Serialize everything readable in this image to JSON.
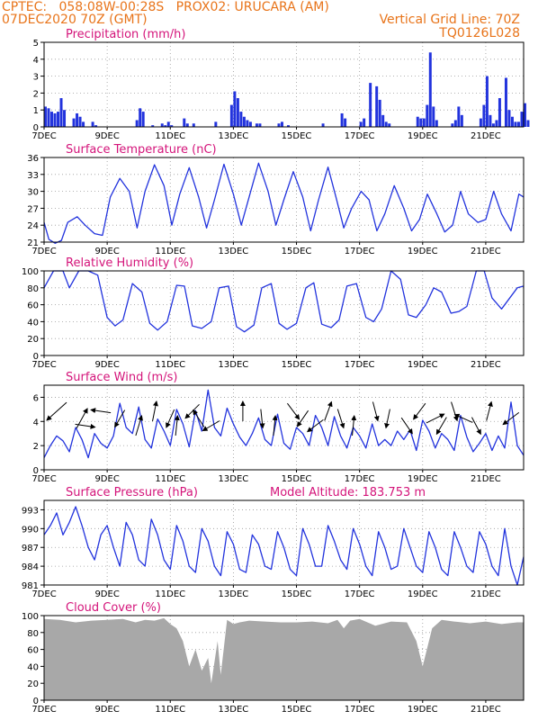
{
  "header": {
    "line1": "CPTEC:   058:08W-00:28S   PROX02: URUCARA (AM)",
    "line2_left": "07DEC2020 70Z (GMT)",
    "line2_right": "Vertical Grid Line: 70Z",
    "line3_right": "TQ0126L028"
  },
  "colors": {
    "header": "#e8741a",
    "title": "#d4147a",
    "series": "#2233dd",
    "cloud": "#a8a8a8",
    "arrow": "#000000"
  },
  "x_ticks": [
    "7DEC",
    "9DEC",
    "11DEC",
    "13DEC",
    "15DEC",
    "17DEC",
    "19DEC",
    "21DEC"
  ],
  "chart_data": [
    {
      "type": "bar",
      "title": "Precipitation (mm/h)",
      "ylim": [
        0,
        5
      ],
      "yticks": [
        0,
        1,
        2,
        3,
        4,
        5
      ],
      "x_days": [
        0,
        0.1,
        0.2,
        0.3,
        0.4,
        0.5,
        0.6,
        0.9,
        1.0,
        1.1,
        1.2,
        1.5,
        1.6,
        2.9,
        3.0,
        3.1,
        3.4,
        3.7,
        3.8,
        3.9,
        4.0,
        4.4,
        4.5,
        4.7,
        5.4,
        5.9,
        6.0,
        6.1,
        6.2,
        6.3,
        6.4,
        6.5,
        6.7,
        6.8,
        7.4,
        7.5,
        7.7,
        8.8,
        9.4,
        9.5,
        10.0,
        10.1,
        10.3,
        10.5,
        10.6,
        10.7,
        10.8,
        10.9,
        11.8,
        11.9,
        12.0,
        12.1,
        12.2,
        12.3,
        12.4,
        12.9,
        13.0,
        13.1,
        13.2,
        13.8,
        13.9,
        14.0,
        14.1,
        14.2,
        14.3,
        14.4,
        14.6,
        14.7,
        14.8,
        14.9,
        15.0,
        15.1,
        15.2,
        15.3
      ],
      "values": [
        1.2,
        1.1,
        0.9,
        0.8,
        0.9,
        1.7,
        1.0,
        0.5,
        0.8,
        0.6,
        0.3,
        0.3,
        0.1,
        0.4,
        1.1,
        0.9,
        0.1,
        0.2,
        0.1,
        0.3,
        0.1,
        0.5,
        0.2,
        0.2,
        0.3,
        1.3,
        2.1,
        1.7,
        0.9,
        0.6,
        0.4,
        0.3,
        0.2,
        0.2,
        0.2,
        0.3,
        0.1,
        0.2,
        0.8,
        0.5,
        0.3,
        0.5,
        2.6,
        2.4,
        1.6,
        0.7,
        0.3,
        0.2,
        0.6,
        0.5,
        0.5,
        1.3,
        4.4,
        1.2,
        0.4,
        0.2,
        0.4,
        1.2,
        0.7,
        0.5,
        1.3,
        3.0,
        0.7,
        0.2,
        0.4,
        1.7,
        2.9,
        1.0,
        0.6,
        0.3,
        0.3,
        0.9,
        1.4,
        0.4
      ]
    },
    {
      "type": "line",
      "title": "Surface Temperature (nC)",
      "ylim": [
        21,
        36
      ],
      "yticks": [
        21,
        24,
        27,
        30,
        33,
        36
      ],
      "x_days": [
        0,
        0.15,
        0.35,
        0.55,
        0.75,
        1.05,
        1.3,
        1.6,
        1.85,
        2.1,
        2.4,
        2.7,
        2.95,
        3.2,
        3.5,
        3.8,
        4.05,
        4.3,
        4.6,
        4.9,
        5.15,
        5.4,
        5.7,
        6.0,
        6.25,
        6.5,
        6.8,
        7.1,
        7.35,
        7.6,
        7.9,
        8.2,
        8.45,
        8.7,
        9.0,
        9.25,
        9.5,
        9.75,
        10.05,
        10.3,
        10.55,
        10.8,
        11.1,
        11.4,
        11.65,
        11.9,
        12.15,
        12.45,
        12.7,
        12.95,
        13.2,
        13.45,
        13.75,
        14.0,
        14.25,
        14.5,
        14.8,
        15.05,
        15.2
      ],
      "values": [
        24.5,
        21.5,
        20.8,
        21.3,
        24.5,
        25.5,
        24.0,
        22.5,
        22.2,
        29.0,
        32.3,
        30.0,
        23.5,
        30.0,
        34.7,
        31.0,
        24.0,
        29.5,
        34.2,
        29.0,
        23.5,
        28.5,
        34.8,
        29.5,
        24.0,
        29.0,
        35.0,
        30.0,
        24.0,
        28.5,
        33.5,
        29.0,
        23.0,
        28.5,
        34.3,
        29.0,
        23.5,
        27.0,
        30.0,
        28.5,
        23.0,
        26.0,
        31.0,
        27.0,
        23.0,
        25.0,
        29.5,
        26.0,
        22.8,
        24.0,
        30.0,
        26.0,
        24.5,
        25.0,
        30.0,
        26.0,
        23.0,
        29.5,
        29.0
      ]
    },
    {
      "type": "line",
      "title": "Relative Humidity (%)",
      "ylim": [
        0,
        100
      ],
      "yticks": [
        0,
        20,
        40,
        60,
        80,
        100
      ],
      "x_days": [
        0,
        0.3,
        0.6,
        0.8,
        1.1,
        1.4,
        1.7,
        2.0,
        2.25,
        2.5,
        2.8,
        3.1,
        3.35,
        3.6,
        3.9,
        4.2,
        4.45,
        4.7,
        5.0,
        5.3,
        5.55,
        5.85,
        6.1,
        6.35,
        6.65,
        6.9,
        7.2,
        7.45,
        7.7,
        8.0,
        8.3,
        8.55,
        8.8,
        9.1,
        9.35,
        9.6,
        9.9,
        10.2,
        10.45,
        10.7,
        11.0,
        11.3,
        11.55,
        11.8,
        12.1,
        12.35,
        12.6,
        12.9,
        13.15,
        13.4,
        13.7,
        13.95,
        14.2,
        14.5,
        14.8,
        15.0,
        15.2
      ],
      "values": [
        80,
        100,
        100,
        80,
        100,
        100,
        95,
        45,
        35,
        42,
        85,
        75,
        38,
        30,
        40,
        83,
        82,
        35,
        32,
        40,
        80,
        82,
        34,
        28,
        36,
        80,
        85,
        38,
        31,
        38,
        80,
        86,
        37,
        33,
        42,
        82,
        85,
        45,
        40,
        55,
        100,
        90,
        48,
        45,
        60,
        80,
        75,
        50,
        52,
        58,
        100,
        100,
        68,
        55,
        70,
        80,
        82
      ],
      "__note": ""
    },
    {
      "type": "line",
      "title": "Surface Wind (m/s)",
      "ylim": [
        0,
        7
      ],
      "yticks": [
        0,
        2,
        4,
        6
      ],
      "x_days": [
        0,
        0.2,
        0.4,
        0.6,
        0.8,
        1.0,
        1.2,
        1.4,
        1.6,
        1.8,
        2.0,
        2.2,
        2.4,
        2.6,
        2.8,
        3.0,
        3.2,
        3.4,
        3.6,
        3.8,
        4.0,
        4.2,
        4.4,
        4.6,
        4.8,
        5.0,
        5.2,
        5.4,
        5.6,
        5.8,
        6.0,
        6.2,
        6.4,
        6.6,
        6.8,
        7.0,
        7.2,
        7.4,
        7.6,
        7.8,
        8.0,
        8.2,
        8.4,
        8.6,
        8.8,
        9.0,
        9.2,
        9.4,
        9.6,
        9.8,
        10.0,
        10.2,
        10.4,
        10.6,
        10.8,
        11.0,
        11.2,
        11.4,
        11.6,
        11.8,
        12.0,
        12.2,
        12.4,
        12.6,
        12.8,
        13.0,
        13.2,
        13.4,
        13.6,
        13.8,
        14.0,
        14.2,
        14.4,
        14.6,
        14.8,
        15.0,
        15.2
      ],
      "values": [
        1.0,
        2.0,
        2.8,
        2.4,
        1.5,
        3.5,
        2.5,
        1.0,
        3.0,
        2.2,
        1.8,
        2.8,
        5.5,
        3.5,
        3.0,
        5.2,
        2.5,
        1.8,
        4.2,
        3.2,
        2.0,
        5.0,
        3.8,
        1.9,
        4.9,
        3.2,
        6.6,
        3.5,
        2.8,
        5.1,
        3.8,
        2.7,
        2.0,
        3.0,
        4.3,
        2.5,
        2.0,
        4.6,
        2.2,
        1.7,
        3.5,
        3.0,
        2.0,
        4.5,
        3.5,
        2.0,
        4.4,
        2.8,
        1.8,
        3.5,
        2.8,
        1.8,
        3.8,
        2.0,
        2.5,
        2.0,
        3.2,
        2.5,
        3.3,
        1.6,
        4.1,
        3.2,
        1.8,
        3.0,
        2.5,
        1.6,
        4.5,
        2.7,
        1.5,
        2.2,
        3.0,
        1.6,
        2.8,
        1.8,
        5.6,
        2.0,
        1.2
      ],
      "arrows": [
        {
          "x_day": 0.4,
          "dx": -1,
          "dy": -0.9
        },
        {
          "x_day": 1.2,
          "dx": 0.55,
          "dy": 1.0
        },
        {
          "x_day": 1.3,
          "dx": 1,
          "dy": -0.15
        },
        {
          "x_day": 1.8,
          "dx": -1,
          "dy": 0.15
        },
        {
          "x_day": 2.4,
          "dx": -0.5,
          "dy": -0.85
        },
        {
          "x_day": 3.0,
          "dx": 0.3,
          "dy": 1.0
        },
        {
          "x_day": 3.5,
          "dx": 0.2,
          "dy": 1.0
        },
        {
          "x_day": 4.0,
          "dx": -0.4,
          "dy": -0.9
        },
        {
          "x_day": 4.2,
          "dx": 0.1,
          "dy": 1.0
        },
        {
          "x_day": 4.7,
          "dx": -0.7,
          "dy": -0.7
        },
        {
          "x_day": 4.9,
          "dx": -0.55,
          "dy": 0.85
        },
        {
          "x_day": 5.3,
          "dx": -0.85,
          "dy": -0.5
        },
        {
          "x_day": 6.3,
          "dx": 0.0,
          "dy": 1.0
        },
        {
          "x_day": 6.9,
          "dx": 0.1,
          "dy": -0.95
        },
        {
          "x_day": 7.3,
          "dx": 0.1,
          "dy": 1.0
        },
        {
          "x_day": 7.9,
          "dx": 0.6,
          "dy": -0.8
        },
        {
          "x_day": 8.2,
          "dx": -0.55,
          "dy": -0.8
        },
        {
          "x_day": 8.6,
          "dx": -0.8,
          "dy": -0.6
        },
        {
          "x_day": 9.0,
          "dx": 0.35,
          "dy": 0.95
        },
        {
          "x_day": 9.4,
          "dx": 0.3,
          "dy": -0.95
        },
        {
          "x_day": 9.8,
          "dx": 0.1,
          "dy": 1.0
        },
        {
          "x_day": 10.5,
          "dx": 0.25,
          "dy": -0.95
        },
        {
          "x_day": 10.9,
          "dx": -0.2,
          "dy": -0.95
        },
        {
          "x_day": 11.5,
          "dx": 0.55,
          "dy": -0.8
        },
        {
          "x_day": 11.9,
          "dx": -0.6,
          "dy": -0.8
        },
        {
          "x_day": 12.4,
          "dx": 0.9,
          "dy": 0.45
        },
        {
          "x_day": 12.6,
          "dx": -0.5,
          "dy": -0.85
        },
        {
          "x_day": 13.0,
          "dx": 0.3,
          "dy": -0.95
        },
        {
          "x_day": 13.3,
          "dx": -0.9,
          "dy": 0.4
        },
        {
          "x_day": 13.7,
          "dx": 0.45,
          "dy": -0.85
        },
        {
          "x_day": 14.1,
          "dx": 0.25,
          "dy": 0.95
        },
        {
          "x_day": 14.8,
          "dx": -0.8,
          "dy": -0.6
        }
      ]
    },
    {
      "type": "line",
      "title": "Surface Pressure (hPa)",
      "annotation": "Model Altitude: 183.753  m",
      "ylim": [
        981,
        994.5
      ],
      "yticks": [
        981,
        984,
        987,
        990,
        993
      ],
      "x_days": [
        0,
        0.2,
        0.4,
        0.6,
        0.8,
        1.0,
        1.2,
        1.4,
        1.6,
        1.8,
        2.0,
        2.2,
        2.4,
        2.6,
        2.8,
        3.0,
        3.2,
        3.4,
        3.6,
        3.8,
        4.0,
        4.2,
        4.4,
        4.6,
        4.8,
        5.0,
        5.2,
        5.4,
        5.6,
        5.8,
        6.0,
        6.2,
        6.4,
        6.6,
        6.8,
        7.0,
        7.2,
        7.4,
        7.6,
        7.8,
        8.0,
        8.2,
        8.4,
        8.6,
        8.8,
        9.0,
        9.2,
        9.4,
        9.6,
        9.8,
        10.0,
        10.2,
        10.4,
        10.6,
        10.8,
        11.0,
        11.2,
        11.4,
        11.6,
        11.8,
        12.0,
        12.2,
        12.4,
        12.6,
        12.8,
        13.0,
        13.2,
        13.4,
        13.6,
        13.8,
        14.0,
        14.2,
        14.4,
        14.6,
        14.8,
        15.0,
        15.2
      ],
      "values": [
        989.0,
        990.5,
        992.5,
        989.0,
        991.0,
        993.5,
        990.5,
        987.0,
        985.0,
        989.0,
        990.5,
        987.0,
        984.0,
        991.0,
        989.0,
        985.0,
        984.0,
        991.5,
        989.0,
        985.0,
        983.5,
        990.5,
        988.0,
        984.0,
        983.0,
        990.0,
        988.0,
        984.0,
        982.5,
        989.5,
        987.5,
        983.5,
        983.0,
        989.0,
        987.5,
        984.0,
        983.5,
        989.5,
        987.0,
        983.5,
        982.5,
        990.0,
        987.5,
        984.0,
        984.0,
        990.5,
        988.0,
        985.0,
        983.5,
        990.0,
        987.5,
        984.0,
        982.5,
        989.5,
        987.0,
        983.5,
        984.0,
        990.0,
        987.0,
        984.0,
        983.0,
        989.5,
        987.0,
        983.5,
        982.5,
        989.5,
        987.0,
        984.0,
        983.0,
        989.5,
        987.5,
        984.0,
        982.5,
        990.0,
        984.0,
        981.0,
        985.5
      ]
    },
    {
      "type": "area",
      "title": "Cloud Cover (%)",
      "ylim": [
        0,
        100
      ],
      "yticks": [
        0,
        20,
        40,
        60,
        80,
        100
      ],
      "x_days": [
        0,
        0.5,
        1.0,
        1.5,
        2.0,
        2.5,
        2.9,
        3.2,
        3.5,
        3.8,
        4.0,
        4.2,
        4.4,
        4.6,
        4.8,
        5.0,
        5.2,
        5.3,
        5.4,
        5.5,
        5.6,
        5.8,
        6.0,
        6.2,
        6.5,
        7.0,
        7.5,
        8.0,
        8.5,
        9.0,
        9.3,
        9.5,
        9.7,
        10.0,
        10.5,
        11.0,
        11.5,
        11.8,
        12.0,
        12.3,
        12.6,
        13.0,
        13.5,
        14.0,
        14.5,
        15.0,
        15.2
      ],
      "values": [
        96,
        95,
        92,
        94,
        95,
        96,
        92,
        95,
        94,
        97,
        90,
        85,
        70,
        40,
        60,
        35,
        50,
        20,
        45,
        70,
        30,
        95,
        90,
        92,
        94,
        93,
        92,
        92,
        93,
        91,
        95,
        85,
        94,
        96,
        88,
        93,
        92,
        70,
        40,
        85,
        95,
        93,
        91,
        93,
        90,
        92,
        92
      ]
    }
  ]
}
